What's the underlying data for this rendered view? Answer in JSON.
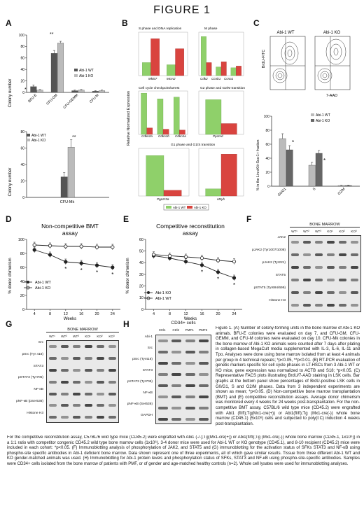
{
  "figure": {
    "title": "FIGURE 1"
  },
  "panels": {
    "A": "A",
    "B": "B",
    "C": "C",
    "D": "D",
    "E": "E",
    "F": "F",
    "G": "G",
    "H": "H"
  },
  "panelA": {
    "ylabel": "Colony number",
    "legend": [
      "Abi-1 WT",
      "Abi-1 KO"
    ],
    "top_categories": [
      "BFU-E",
      "CFU-GM",
      "CFU-GEMM",
      "CFU-M"
    ],
    "top_sig": [
      "*",
      "**"
    ],
    "bottom_category": "CFU-Mk",
    "bottom_sig": "**"
  },
  "panelB": {
    "ylabel": "Relative Normalized Expression",
    "titles": [
      "S phase and DNA replication",
      "M phase",
      "Cell cycle checkpoint/arrest",
      "G2 phase and G2/M transition",
      "G1 phase and G1/S transition"
    ],
    "genes": {
      "s": [
        "Mki67",
        "Mcm2"
      ],
      "m": [
        "Cdk2",
        "Ccnb1",
        "Ccna1"
      ],
      "cc": [
        "Cdkn2a",
        "Cdkn1b",
        "Cdkn1a"
      ],
      "g2": [
        "Pp1md"
      ],
      "g1a": [
        "Ppp2r3a"
      ],
      "g1b": [
        "cMyb"
      ]
    },
    "legend": [
      "Abi-1 WT",
      "Abi-1 KO"
    ]
  },
  "panelC": {
    "title_wt": "Abi-1 WT",
    "title_ko": "Abi-1 KO",
    "yaxis": "BrdU-FITC",
    "xaxis": "7-AAD",
    "legend": [
      "Abi-1 WT",
      "Abi-1 KO"
    ],
    "ylabel": "% in the Lin-cKit+Sca-1+ fraction",
    "categories": [
      "G0/G1",
      "S",
      "G2/M"
    ],
    "sig": [
      "*",
      "*"
    ]
  },
  "panelD": {
    "title1": "Non-competitive BMT",
    "title2": "assay",
    "ylabel": "% donor chimerism",
    "xlabel": "Weeks",
    "legend": [
      "Abi-1 WT",
      "Abi-1 KO"
    ]
  },
  "panelE": {
    "title1": "Competitive reconstitution",
    "title2": "assay",
    "ylabel": "% donor chimerism",
    "xlabel": "Weeks",
    "legend": [
      "Abi-1 KO",
      "Abi-1 WT"
    ]
  },
  "panelF": {
    "title": "BONE MARROW",
    "lanes": [
      "WT¹",
      "WT²",
      "WT³",
      "KO¹",
      "KO²",
      "KO³"
    ],
    "rows": [
      "JAK2",
      "pJAK2 (Tyr1007/1008)",
      "pJAK2 (Tyr221)",
      "STAT5",
      "pSTAT5 (Tyr694/699)",
      "Histone H3"
    ]
  },
  "panelG": {
    "title": "BONE MARROW",
    "lanes": [
      "WT¹",
      "WT²",
      "WT³",
      "KO¹",
      "KO²",
      "KO³"
    ],
    "rows": [
      "Src",
      "pSrc (Tyr 416)",
      "STAT3",
      "pSTAT3 (Tyr705)",
      "NF-κB",
      "pNF-κB (pSer536)",
      "Histone H3"
    ]
  },
  "panelH": {
    "title": "CD34+ cells",
    "lanes": [
      "Ctrl1",
      "Ctrl2",
      "PMF1",
      "PMF2"
    ],
    "rows": [
      "Abi-1",
      "Src",
      "pSrc (Tyr416)",
      "STAT3",
      "pSTAT3 (Tyr705)",
      "NF-κB",
      "pNF-κB (Ser536)",
      "GAPDH"
    ]
  },
  "caption_right": "Figure 1. (A) Number of colony-forming units in the bone marrow of Abi-1 KO animals. BFU-E colonies were evaluated on day 7, and CFU-GM, CFU-GEMM, and CFU-M colonies were evaluated on day 10. CFU-Mk colonies in the bone marrow of Abi-1 KO animals were counted after 7 days after plating in collagen-based MegaCult media supplemented with IL-3, IL-6, IL-11 and Tpo. Analyses were done using bone marrow isolated from at least 4 animals per group in 4 technical repeats; *p<0.05, **p<0.01. (B) RT-PCR evaluation of genetic markers specific for cell cycle phases in LT-HSCs from 3 Abi-1 WT or KO mice, gene expression was normalized to ACTB and S18; *p<0.05. (C) Representative FACS plots illustrating BrdU/7-AAD staining in LSK cells. Bar graphs at the bottom panel show percentages of BrdU-positive LSK cells in G0/G1, S and G2/M phases. Data from 3 independent experiments are shown as mean; *p<0.05. (D) Non-competitive bone marrow transplantation (BMT) and (E) competitive reconstitution assays. Average donor chimerism was monitored every 4 weeks for 24 weeks post-transplantation. For the non-competitive BMT assay, C57BL/6 wild type mice (CD45.2) were engrafted with Abi1 (fl/fl);Tg(Mx1-cre(+)) or Abi1(fl/fl);Tg (Mx1-cre(-)) whole bone marrow (CD45.1) (5x10⁶) cells and subjected to poly(I:C) induction 4 weeks post-transplantation.",
  "caption_bottom": "For the competitive reconstitution assay, C57BL/6 wild type mice (CD45.2) were engrafted with Abi1 (-/-);Tg(Mx1-cre(+)) or Abi1(fl/fl);Tg (Mx1-cre(-)) whole bone marrow (CD45.1, 1x10⁶)) in a 1:1 ratio with competitor congenic CD45.2 wild type bone marrow cells (1x10⁶). 3-4 donor mice were used for Abi-1 WT or KO genotype (CD45.1), and 8-10 recipient (CD45.2) mice were included in each cohort: *p<0.05. (F) Immunoblotting analysis of phosphorylation of JAK2, and STAT5 and (G) immunoblotting for the activation status of SFKs STAT3 and NF-κB using phospho-site specific antibodies in Abi-1 deficient bone marrow. Data shown represent one of three experiments, all of which gave similar results. Tissue from three different Abi-1 WT and KO gender-matched animals was used. (H) Immunoblotting for Abi-1 protein levels and phosphorylation status of SFKs, STAT3 and NF-κB using phospho-site-specific antibodies. Samples were CD34+ cells isolated from the bone marrow of patients with PMF, or of gender and age-matched healthy controls (n=2). Whole cell lysates were used for immunoblotting analyses.",
  "chart_data": [
    {
      "type": "bar",
      "title": "",
      "categories": [
        "BFU-E",
        "CFU-GM",
        "CFU-GEMM",
        "CFU-M"
      ],
      "series": [
        {
          "name": "Abi-1 WT",
          "values": [
            10,
            68,
            3,
            2
          ]
        },
        {
          "name": "Abi-1 KO",
          "values": [
            4,
            86,
            4,
            3
          ]
        }
      ],
      "errors": [
        [
          3,
          5,
          1,
          1
        ],
        [
          1,
          3,
          1,
          1
        ]
      ],
      "ylabel": "Colony number",
      "ylim": [
        0,
        100
      ],
      "yticks": [
        0,
        20,
        40,
        60,
        80,
        100
      ]
    },
    {
      "type": "bar",
      "title": "",
      "categories": [
        "CFU-Mk"
      ],
      "series": [
        {
          "name": "Abi-1 WT",
          "values": [
            25
          ]
        },
        {
          "name": "Abi-1 KO",
          "values": [
            61
          ]
        }
      ],
      "errors": [
        [
          5
        ],
        [
          9
        ]
      ],
      "ylabel": "Colony number",
      "ylim": [
        0,
        80
      ],
      "yticks": [
        0,
        20,
        40,
        60,
        80
      ]
    },
    {
      "type": "bar",
      "title": "",
      "categories": [
        "G0/G1",
        "S",
        "G2/M"
      ],
      "series": [
        {
          "name": "Abi-1 WT",
          "values": [
            68,
            30,
            1
          ]
        },
        {
          "name": "Abi-1 KO",
          "values": [
            52,
            47,
            1
          ]
        }
      ],
      "errors": [
        [
          7,
          4,
          0.5
        ],
        [
          6,
          4,
          0.5
        ]
      ],
      "ylabel": "% in the Lin-cKit+Sca-1+ fraction",
      "ylim": [
        0,
        100
      ],
      "yticks": [
        0,
        20,
        40,
        60,
        80,
        100
      ]
    },
    {
      "type": "line",
      "title": "Non-competitive BMT assay",
      "x": [
        4,
        8,
        12,
        16,
        20,
        24
      ],
      "series": [
        {
          "name": "Abi-1 WT",
          "values": [
            92,
            91,
            90,
            90,
            89,
            89
          ]
        },
        {
          "name": "Abi-1 KO",
          "values": [
            85,
            78,
            68,
            66,
            63,
            60
          ]
        }
      ],
      "ylabel": "% donor chimerism",
      "xlabel": "Weeks",
      "ylim": [
        0,
        100
      ],
      "yticks": [
        0,
        20,
        40,
        60,
        80,
        100
      ]
    },
    {
      "type": "line",
      "title": "Competitive reconstitution assay",
      "x": [
        4,
        8,
        12,
        16,
        20,
        24
      ],
      "series": [
        {
          "name": "Abi-1 KO",
          "values": [
            46,
            44,
            41,
            38,
            32,
            27
          ]
        },
        {
          "name": "Abi-1 WT",
          "values": [
            47,
            46,
            45,
            44,
            42,
            41
          ]
        }
      ],
      "ylabel": "% donor chimerism",
      "xlabel": "Weeks",
      "ylim": [
        0,
        60
      ],
      "yticks": [
        0,
        10,
        20,
        30,
        40,
        50,
        60
      ]
    }
  ]
}
